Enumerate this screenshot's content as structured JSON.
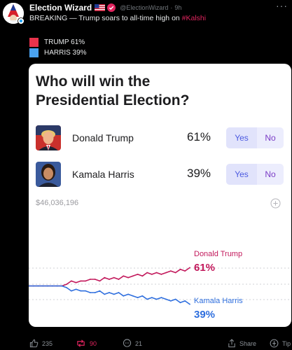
{
  "post": {
    "author": "Election Wizard",
    "handle": "@ElectionWizard",
    "dot": "·",
    "time": "9h",
    "text_prefix": "BREAKING — Trump soars to all-time high on ",
    "hashtag": "#Kalshi",
    "more_label": "···"
  },
  "legend": [
    {
      "label": "TRUMP 61%",
      "color": "#e8334c"
    },
    {
      "label": "HARRIS 39%",
      "color": "#4aa3f0"
    }
  ],
  "market": {
    "question": "Who will win the Presidential Election?",
    "candidates": [
      {
        "name": "Donald Trump",
        "pct": "61%",
        "yes": "Yes",
        "no": "No"
      },
      {
        "name": "Kamala Harris",
        "pct": "39%",
        "yes": "Yes",
        "no": "No"
      }
    ],
    "volume": "$46,036,196"
  },
  "chart_data": {
    "type": "line",
    "series": [
      {
        "name": "Donald Trump",
        "label_value": "61%",
        "color": "#c2185b",
        "values": [
          50,
          50,
          50,
          50,
          50,
          50,
          50,
          50,
          51,
          53,
          52,
          53,
          53,
          54,
          54,
          53,
          55,
          54,
          55,
          54,
          56,
          55,
          56,
          57,
          56,
          58,
          57,
          58,
          57,
          58,
          59,
          58,
          60,
          59,
          61
        ]
      },
      {
        "name": "Kamala Harris",
        "label_value": "39%",
        "color": "#2f6fde",
        "values": [
          50,
          50,
          50,
          50,
          50,
          50,
          50,
          50,
          49,
          47,
          48,
          47,
          47,
          46,
          46,
          47,
          45,
          46,
          45,
          46,
          44,
          45,
          44,
          43,
          44,
          42,
          43,
          42,
          43,
          42,
          41,
          42,
          40,
          41,
          39
        ]
      }
    ],
    "ylim": [
      30,
      70
    ],
    "grid": true
  },
  "actions": {
    "likes": "235",
    "reposts": "90",
    "replies": "21",
    "share": "Share",
    "tip": "Tip"
  },
  "colors": {
    "accent_red": "#e0245e",
    "repost_red": "#e0245e",
    "yes_blue": "#4c5ae0",
    "no_purple": "#7b3cc6"
  }
}
